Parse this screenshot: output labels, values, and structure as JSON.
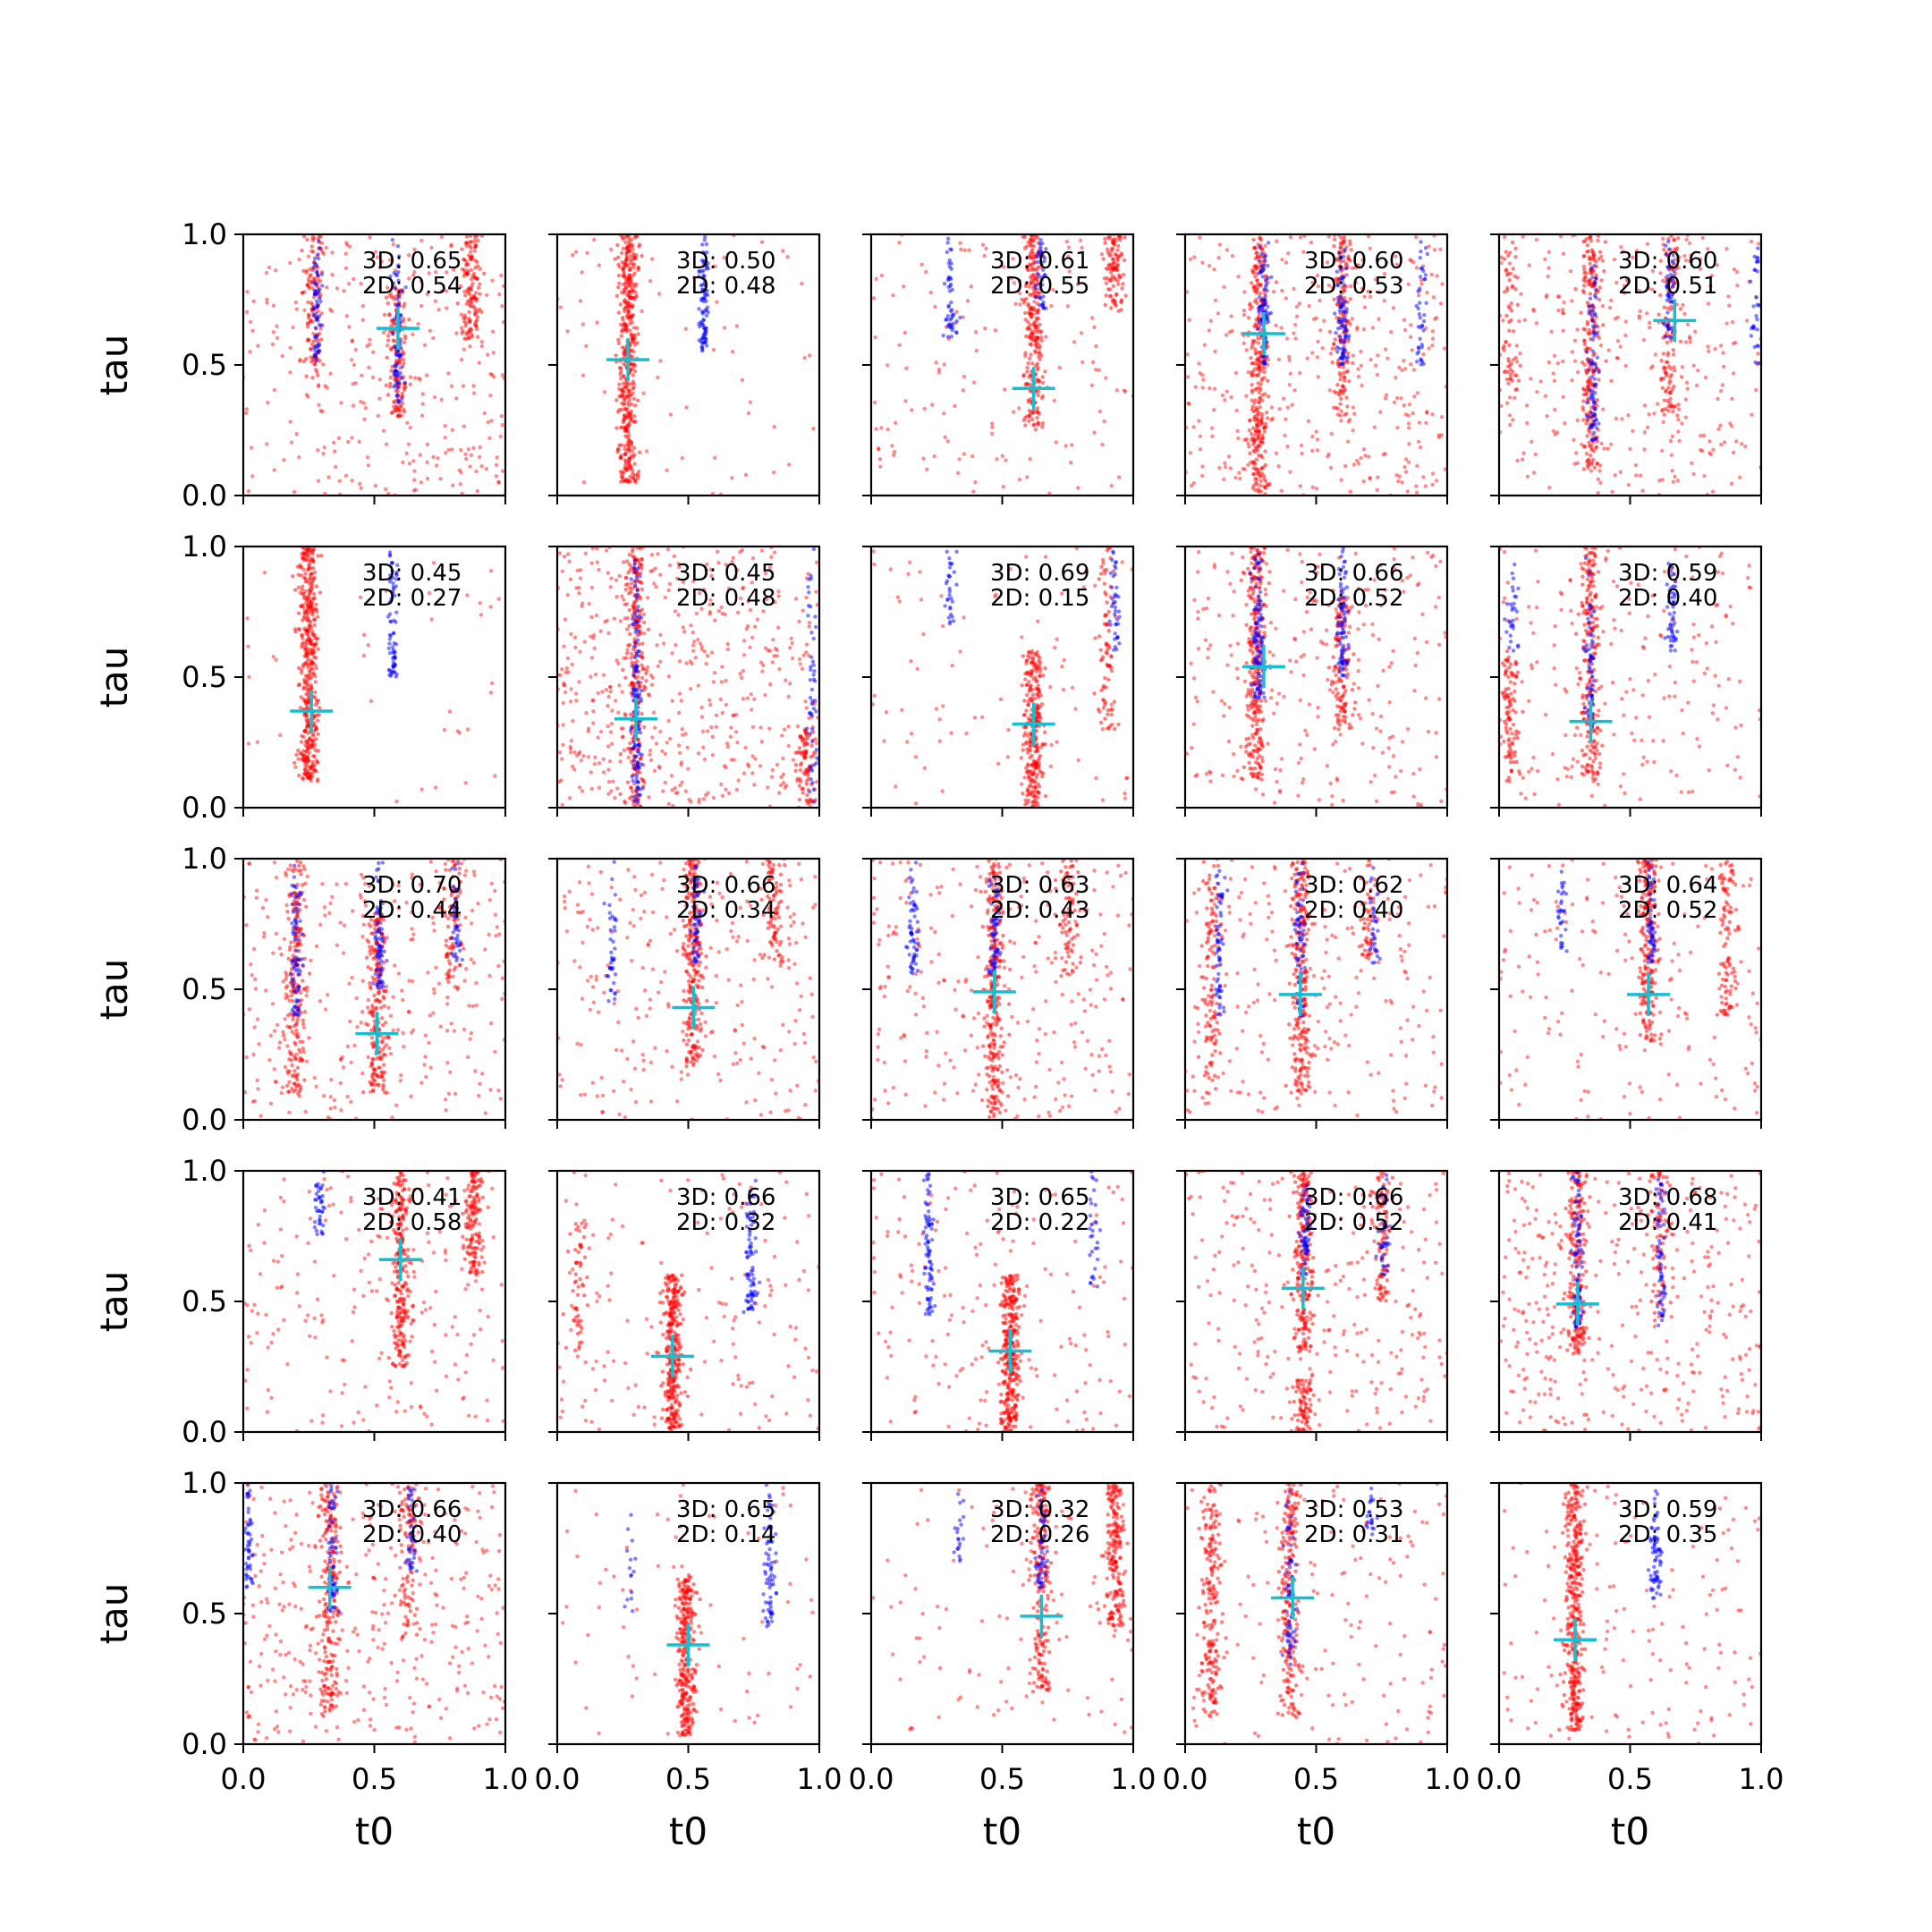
{
  "figure": {
    "colors": {
      "series_a": "#ff0000",
      "series_b": "#0000ff",
      "marker": "#17becf",
      "axes": "#000000",
      "background": "#ffffff"
    }
  },
  "chart_data": {
    "type": "scatter",
    "layout": "5x5 grid of scatter subplots with shared axes",
    "xlabel": "t0",
    "ylabel": "tau",
    "xlim": [
      0,
      1
    ],
    "ylim": [
      0,
      1
    ],
    "xticks": [
      "0.0",
      "0.5",
      "1.0"
    ],
    "yticks": [
      "0.0",
      "0.5",
      "1.0"
    ],
    "grid": false,
    "legend": "none",
    "annotation_prefix": {
      "a": "3D: ",
      "b": "2D: "
    },
    "description": "Each panel: dense red point cloud with vertical clusters, blue point clusters, cyan '+' marker, annotation with two scores",
    "panels": [
      {
        "scores": {
          "3D": "0.65",
          "2D": "0.54"
        },
        "marker": [
          0.59,
          0.64
        ],
        "red_clusters": [
          {
            "x": 0.27,
            "ymin": 0.45,
            "ymax": 1.0,
            "n": 120
          },
          {
            "x": 0.59,
            "ymin": 0.3,
            "ymax": 0.8,
            "n": 140
          },
          {
            "x": 0.87,
            "ymin": 0.6,
            "ymax": 1.0,
            "n": 130
          }
        ],
        "blue_clusters": [
          {
            "x": 0.28,
            "ymin": 0.5,
            "ymax": 1.0,
            "n": 60
          },
          {
            "x": 0.59,
            "ymin": 0.35,
            "ymax": 1.0,
            "n": 80
          }
        ],
        "red_noise": 300
      },
      {
        "scores": {
          "3D": "0.50",
          "2D": "0.48"
        },
        "marker": [
          0.27,
          0.52
        ],
        "red_clusters": [
          {
            "x": 0.27,
            "ymin": 0.05,
            "ymax": 1.0,
            "n": 450
          }
        ],
        "blue_clusters": [
          {
            "x": 0.56,
            "ymin": 0.55,
            "ymax": 1.0,
            "n": 90
          }
        ],
        "red_noise": 60
      },
      {
        "scores": {
          "3D": "0.61",
          "2D": "0.55"
        },
        "marker": [
          0.62,
          0.41
        ],
        "red_clusters": [
          {
            "x": 0.62,
            "ymin": 0.25,
            "ymax": 1.0,
            "n": 250
          },
          {
            "x": 0.93,
            "ymin": 0.7,
            "ymax": 1.0,
            "n": 100
          }
        ],
        "blue_clusters": [
          {
            "x": 0.3,
            "ymin": 0.6,
            "ymax": 1.0,
            "n": 50
          },
          {
            "x": 0.65,
            "ymin": 0.7,
            "ymax": 1.0,
            "n": 40
          }
        ],
        "red_noise": 150
      },
      {
        "scores": {
          "3D": "0.60",
          "2D": "0.53"
        },
        "marker": [
          0.3,
          0.62
        ],
        "red_clusters": [
          {
            "x": 0.28,
            "ymin": 0.0,
            "ymax": 1.0,
            "n": 300
          },
          {
            "x": 0.6,
            "ymin": 0.3,
            "ymax": 1.0,
            "n": 150
          }
        ],
        "blue_clusters": [
          {
            "x": 0.3,
            "ymin": 0.5,
            "ymax": 1.0,
            "n": 90
          },
          {
            "x": 0.6,
            "ymin": 0.5,
            "ymax": 1.0,
            "n": 80
          },
          {
            "x": 0.9,
            "ymin": 0.5,
            "ymax": 1.0,
            "n": 40
          }
        ],
        "red_noise": 350
      },
      {
        "scores": {
          "3D": "0.60",
          "2D": "0.51"
        },
        "marker": [
          0.67,
          0.67
        ],
        "red_clusters": [
          {
            "x": 0.35,
            "ymin": 0.1,
            "ymax": 1.0,
            "n": 220
          },
          {
            "x": 0.65,
            "ymin": 0.3,
            "ymax": 1.0,
            "n": 120
          },
          {
            "x": 0.04,
            "ymin": 0.4,
            "ymax": 1.0,
            "n": 60
          }
        ],
        "blue_clusters": [
          {
            "x": 0.36,
            "ymin": 0.2,
            "ymax": 1.0,
            "n": 80
          },
          {
            "x": 0.65,
            "ymin": 0.6,
            "ymax": 1.0,
            "n": 50
          },
          {
            "x": 0.98,
            "ymin": 0.5,
            "ymax": 1.0,
            "n": 30
          }
        ],
        "red_noise": 300
      },
      {
        "scores": {
          "3D": "0.45",
          "2D": "0.27"
        },
        "marker": [
          0.26,
          0.37
        ],
        "red_clusters": [
          {
            "x": 0.25,
            "ymin": 0.1,
            "ymax": 1.0,
            "n": 450
          }
        ],
        "blue_clusters": [
          {
            "x": 0.57,
            "ymin": 0.5,
            "ymax": 1.0,
            "n": 70
          }
        ],
        "red_noise": 40
      },
      {
        "scores": {
          "3D": "0.45",
          "2D": "0.48"
        },
        "marker": [
          0.3,
          0.34
        ],
        "red_clusters": [
          {
            "x": 0.3,
            "ymin": 0.0,
            "ymax": 1.0,
            "n": 250
          },
          {
            "x": 0.95,
            "ymin": 0.0,
            "ymax": 0.3,
            "n": 80
          }
        ],
        "blue_clusters": [
          {
            "x": 0.3,
            "ymin": 0.0,
            "ymax": 1.0,
            "n": 120
          },
          {
            "x": 0.97,
            "ymin": 0.0,
            "ymax": 1.0,
            "n": 50
          }
        ],
        "red_noise": 500
      },
      {
        "scores": {
          "3D": "0.69",
          "2D": "0.15"
        },
        "marker": [
          0.62,
          0.32
        ],
        "red_clusters": [
          {
            "x": 0.62,
            "ymin": 0.0,
            "ymax": 0.6,
            "n": 280
          },
          {
            "x": 0.9,
            "ymin": 0.3,
            "ymax": 1.0,
            "n": 80
          }
        ],
        "blue_clusters": [
          {
            "x": 0.3,
            "ymin": 0.7,
            "ymax": 1.0,
            "n": 30
          },
          {
            "x": 0.93,
            "ymin": 0.6,
            "ymax": 1.0,
            "n": 40
          }
        ],
        "red_noise": 80
      },
      {
        "scores": {
          "3D": "0.66",
          "2D": "0.52"
        },
        "marker": [
          0.3,
          0.54
        ],
        "red_clusters": [
          {
            "x": 0.27,
            "ymin": 0.1,
            "ymax": 1.0,
            "n": 280
          },
          {
            "x": 0.6,
            "ymin": 0.3,
            "ymax": 0.8,
            "n": 120
          }
        ],
        "blue_clusters": [
          {
            "x": 0.28,
            "ymin": 0.4,
            "ymax": 1.0,
            "n": 100
          },
          {
            "x": 0.6,
            "ymin": 0.5,
            "ymax": 1.0,
            "n": 80
          }
        ],
        "red_noise": 260
      },
      {
        "scores": {
          "3D": "0.59",
          "2D": "0.40"
        },
        "marker": [
          0.35,
          0.33
        ],
        "red_clusters": [
          {
            "x": 0.35,
            "ymin": 0.1,
            "ymax": 1.0,
            "n": 220
          },
          {
            "x": 0.04,
            "ymin": 0.1,
            "ymax": 0.6,
            "n": 100
          }
        ],
        "blue_clusters": [
          {
            "x": 0.35,
            "ymin": 0.3,
            "ymax": 1.0,
            "n": 60
          },
          {
            "x": 0.66,
            "ymin": 0.6,
            "ymax": 1.0,
            "n": 50
          },
          {
            "x": 0.05,
            "ymin": 0.6,
            "ymax": 1.0,
            "n": 30
          }
        ],
        "red_noise": 200
      },
      {
        "scores": {
          "3D": "0.70",
          "2D": "0.44"
        },
        "marker": [
          0.51,
          0.33
        ],
        "red_clusters": [
          {
            "x": 0.2,
            "ymin": 0.1,
            "ymax": 1.0,
            "n": 200
          },
          {
            "x": 0.51,
            "ymin": 0.1,
            "ymax": 0.8,
            "n": 200
          },
          {
            "x": 0.8,
            "ymin": 0.5,
            "ymax": 1.0,
            "n": 80
          }
        ],
        "blue_clusters": [
          {
            "x": 0.2,
            "ymin": 0.4,
            "ymax": 1.0,
            "n": 70
          },
          {
            "x": 0.52,
            "ymin": 0.5,
            "ymax": 1.0,
            "n": 70
          },
          {
            "x": 0.81,
            "ymin": 0.6,
            "ymax": 1.0,
            "n": 40
          }
        ],
        "red_noise": 300
      },
      {
        "scores": {
          "3D": "0.66",
          "2D": "0.34"
        },
        "marker": [
          0.52,
          0.43
        ],
        "red_clusters": [
          {
            "x": 0.52,
            "ymin": 0.2,
            "ymax": 1.0,
            "n": 250
          },
          {
            "x": 0.83,
            "ymin": 0.6,
            "ymax": 1.0,
            "n": 80
          }
        ],
        "blue_clusters": [
          {
            "x": 0.21,
            "ymin": 0.45,
            "ymax": 1.0,
            "n": 40
          },
          {
            "x": 0.53,
            "ymin": 0.6,
            "ymax": 1.0,
            "n": 50
          }
        ],
        "red_noise": 250
      },
      {
        "scores": {
          "3D": "0.63",
          "2D": "0.43"
        },
        "marker": [
          0.47,
          0.49
        ],
        "red_clusters": [
          {
            "x": 0.47,
            "ymin": 0.0,
            "ymax": 1.0,
            "n": 280
          },
          {
            "x": 0.75,
            "ymin": 0.55,
            "ymax": 1.0,
            "n": 80
          }
        ],
        "blue_clusters": [
          {
            "x": 0.16,
            "ymin": 0.55,
            "ymax": 1.0,
            "n": 60
          },
          {
            "x": 0.47,
            "ymin": 0.55,
            "ymax": 1.0,
            "n": 60
          }
        ],
        "red_noise": 260
      },
      {
        "scores": {
          "3D": "0.62",
          "2D": "0.40"
        },
        "marker": [
          0.44,
          0.48
        ],
        "red_clusters": [
          {
            "x": 0.44,
            "ymin": 0.1,
            "ymax": 1.0,
            "n": 250
          },
          {
            "x": 0.1,
            "ymin": 0.1,
            "ymax": 1.0,
            "n": 120
          },
          {
            "x": 0.7,
            "ymin": 0.6,
            "ymax": 1.0,
            "n": 60
          }
        ],
        "blue_clusters": [
          {
            "x": 0.13,
            "ymin": 0.4,
            "ymax": 1.0,
            "n": 60
          },
          {
            "x": 0.44,
            "ymin": 0.4,
            "ymax": 1.0,
            "n": 60
          },
          {
            "x": 0.72,
            "ymin": 0.6,
            "ymax": 1.0,
            "n": 30
          }
        ],
        "red_noise": 220
      },
      {
        "scores": {
          "3D": "0.64",
          "2D": "0.52"
        },
        "marker": [
          0.57,
          0.48
        ],
        "red_clusters": [
          {
            "x": 0.57,
            "ymin": 0.3,
            "ymax": 1.0,
            "n": 220
          },
          {
            "x": 0.87,
            "ymin": 0.4,
            "ymax": 1.0,
            "n": 100
          }
        ],
        "blue_clusters": [
          {
            "x": 0.24,
            "ymin": 0.6,
            "ymax": 1.0,
            "n": 30
          },
          {
            "x": 0.58,
            "ymin": 0.6,
            "ymax": 1.0,
            "n": 50
          }
        ],
        "red_noise": 180
      },
      {
        "scores": {
          "3D": "0.41",
          "2D": "0.58"
        },
        "marker": [
          0.6,
          0.66
        ],
        "red_clusters": [
          {
            "x": 0.6,
            "ymin": 0.25,
            "ymax": 1.0,
            "n": 250
          },
          {
            "x": 0.88,
            "ymin": 0.6,
            "ymax": 1.0,
            "n": 150
          }
        ],
        "blue_clusters": [
          {
            "x": 0.29,
            "ymin": 0.75,
            "ymax": 1.0,
            "n": 40
          }
        ],
        "red_noise": 200
      },
      {
        "scores": {
          "3D": "0.66",
          "2D": "0.32"
        },
        "marker": [
          0.44,
          0.29
        ],
        "red_clusters": [
          {
            "x": 0.44,
            "ymin": 0.0,
            "ymax": 0.6,
            "n": 320
          },
          {
            "x": 0.08,
            "ymin": 0.3,
            "ymax": 0.8,
            "n": 60
          }
        ],
        "blue_clusters": [
          {
            "x": 0.74,
            "ymin": 0.45,
            "ymax": 1.0,
            "n": 80
          }
        ],
        "red_noise": 150
      },
      {
        "scores": {
          "3D": "0.65",
          "2D": "0.22"
        },
        "marker": [
          0.53,
          0.31
        ],
        "red_clusters": [
          {
            "x": 0.53,
            "ymin": 0.0,
            "ymax": 0.6,
            "n": 320
          }
        ],
        "blue_clusters": [
          {
            "x": 0.22,
            "ymin": 0.45,
            "ymax": 1.0,
            "n": 80
          },
          {
            "x": 0.85,
            "ymin": 0.55,
            "ymax": 1.0,
            "n": 30
          }
        ],
        "red_noise": 180
      },
      {
        "scores": {
          "3D": "0.66",
          "2D": "0.52"
        },
        "marker": [
          0.45,
          0.55
        ],
        "red_clusters": [
          {
            "x": 0.45,
            "ymin": 0.3,
            "ymax": 1.0,
            "n": 220
          },
          {
            "x": 0.75,
            "ymin": 0.5,
            "ymax": 1.0,
            "n": 100
          },
          {
            "x": 0.45,
            "ymin": 0.0,
            "ymax": 0.2,
            "n": 80
          }
        ],
        "blue_clusters": [
          {
            "x": 0.46,
            "ymin": 0.6,
            "ymax": 1.0,
            "n": 60
          },
          {
            "x": 0.76,
            "ymin": 0.6,
            "ymax": 1.0,
            "n": 40
          }
        ],
        "red_noise": 260
      },
      {
        "scores": {
          "3D": "0.68",
          "2D": "0.41"
        },
        "marker": [
          0.3,
          0.49
        ],
        "red_clusters": [
          {
            "x": 0.3,
            "ymin": 0.3,
            "ymax": 1.0,
            "n": 200
          },
          {
            "x": 0.61,
            "ymin": 0.4,
            "ymax": 1.0,
            "n": 80
          }
        ],
        "blue_clusters": [
          {
            "x": 0.3,
            "ymin": 0.4,
            "ymax": 1.0,
            "n": 80
          },
          {
            "x": 0.62,
            "ymin": 0.4,
            "ymax": 1.0,
            "n": 60
          }
        ],
        "red_noise": 360
      },
      {
        "scores": {
          "3D": "0.66",
          "2D": "0.40"
        },
        "marker": [
          0.33,
          0.6
        ],
        "red_clusters": [
          {
            "x": 0.33,
            "ymin": 0.1,
            "ymax": 1.0,
            "n": 220
          },
          {
            "x": 0.63,
            "ymin": 0.4,
            "ymax": 1.0,
            "n": 80
          }
        ],
        "blue_clusters": [
          {
            "x": 0.02,
            "ymin": 0.6,
            "ymax": 1.0,
            "n": 50
          },
          {
            "x": 0.34,
            "ymin": 0.5,
            "ymax": 1.0,
            "n": 60
          },
          {
            "x": 0.64,
            "ymin": 0.65,
            "ymax": 1.0,
            "n": 40
          }
        ],
        "red_noise": 360
      },
      {
        "scores": {
          "3D": "0.65",
          "2D": "0.14"
        },
        "marker": [
          0.5,
          0.38
        ],
        "red_clusters": [
          {
            "x": 0.49,
            "ymin": 0.03,
            "ymax": 0.65,
            "n": 300
          }
        ],
        "blue_clusters": [
          {
            "x": 0.81,
            "ymin": 0.45,
            "ymax": 1.0,
            "n": 70
          },
          {
            "x": 0.28,
            "ymin": 0.5,
            "ymax": 0.9,
            "n": 15
          }
        ],
        "red_noise": 70
      },
      {
        "scores": {
          "3D": "0.32",
          "2D": "0.26"
        },
        "marker": [
          0.65,
          0.49
        ],
        "red_clusters": [
          {
            "x": 0.65,
            "ymin": 0.2,
            "ymax": 1.0,
            "n": 220
          },
          {
            "x": 0.93,
            "ymin": 0.45,
            "ymax": 1.0,
            "n": 200
          }
        ],
        "blue_clusters": [
          {
            "x": 0.33,
            "ymin": 0.7,
            "ymax": 1.0,
            "n": 20
          },
          {
            "x": 0.65,
            "ymin": 0.6,
            "ymax": 1.0,
            "n": 50
          }
        ],
        "red_noise": 100
      },
      {
        "scores": {
          "3D": "0.53",
          "2D": "0.31"
        },
        "marker": [
          0.41,
          0.56
        ],
        "red_clusters": [
          {
            "x": 0.4,
            "ymin": 0.1,
            "ymax": 1.0,
            "n": 220
          },
          {
            "x": 0.1,
            "ymin": 0.1,
            "ymax": 1.0,
            "n": 200
          }
        ],
        "blue_clusters": [
          {
            "x": 0.4,
            "ymin": 0.3,
            "ymax": 1.0,
            "n": 60
          },
          {
            "x": 0.71,
            "ymin": 0.8,
            "ymax": 1.0,
            "n": 20
          }
        ],
        "red_noise": 150
      },
      {
        "scores": {
          "3D": "0.59",
          "2D": "0.35"
        },
        "marker": [
          0.29,
          0.4
        ],
        "red_clusters": [
          {
            "x": 0.29,
            "ymin": 0.05,
            "ymax": 1.0,
            "n": 380
          }
        ],
        "blue_clusters": [
          {
            "x": 0.6,
            "ymin": 0.55,
            "ymax": 1.0,
            "n": 70
          }
        ],
        "red_noise": 150
      }
    ]
  }
}
